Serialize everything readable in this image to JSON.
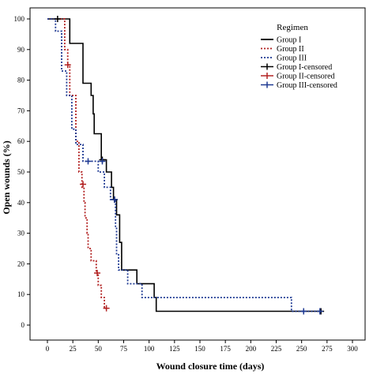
{
  "chart_data": {
    "type": "line",
    "title": "",
    "xlabel": "Wound closure time (days)",
    "ylabel": "Open wounds (%)",
    "xlim": [
      0,
      300
    ],
    "ylim": [
      0,
      100
    ],
    "x_ticks": [
      "0",
      "25",
      "50",
      "75",
      "100",
      "125",
      "150",
      "175",
      "200",
      "225",
      "250",
      "275",
      "300"
    ],
    "y_ticks": [
      "0",
      "10",
      "20",
      "30",
      "40",
      "50",
      "60",
      "70",
      "80",
      "90",
      "100"
    ],
    "grid": false,
    "legend_title": "Regimen",
    "legend_position": "top-right",
    "legend_labels": [
      "Group I",
      "Group II",
      "Group III",
      "Group I-censored",
      "Group II-censored",
      "Group III-censored"
    ],
    "series": [
      {
        "name": "Group I",
        "color": "#000000",
        "style": "solid",
        "steps": [
          [
            0,
            100
          ],
          [
            22,
            100
          ],
          [
            22,
            92
          ],
          [
            35,
            92
          ],
          [
            35,
            79
          ],
          [
            43,
            79
          ],
          [
            43,
            75
          ],
          [
            45,
            75
          ],
          [
            45,
            69
          ],
          [
            46,
            69
          ],
          [
            46,
            62.5
          ],
          [
            53,
            62.5
          ],
          [
            53,
            54
          ],
          [
            58,
            54
          ],
          [
            58,
            50
          ],
          [
            63,
            50
          ],
          [
            63,
            45
          ],
          [
            65,
            45
          ],
          [
            65,
            41
          ],
          [
            68,
            41
          ],
          [
            68,
            36
          ],
          [
            71,
            36
          ],
          [
            71,
            27
          ],
          [
            73,
            27
          ],
          [
            73,
            18
          ],
          [
            88,
            18
          ],
          [
            88,
            13.5
          ],
          [
            105,
            13.5
          ],
          [
            105,
            9
          ],
          [
            107,
            9
          ],
          [
            107,
            4.5
          ],
          [
            269,
            4.5
          ]
        ],
        "censored": [
          [
            10,
            100
          ],
          [
            54,
            54
          ],
          [
            66,
            41
          ],
          [
            269,
            4.5
          ]
        ]
      },
      {
        "name": "Group II",
        "color": "#b22222",
        "style": "dotted",
        "steps": [
          [
            0,
            100
          ],
          [
            17,
            100
          ],
          [
            17,
            90
          ],
          [
            20,
            90
          ],
          [
            20,
            85
          ],
          [
            22,
            85
          ],
          [
            22,
            75
          ],
          [
            28,
            75
          ],
          [
            28,
            60
          ],
          [
            31,
            60
          ],
          [
            31,
            50
          ],
          [
            34,
            50
          ],
          [
            34,
            45
          ],
          [
            36,
            45
          ],
          [
            36,
            40
          ],
          [
            37,
            40
          ],
          [
            37,
            35
          ],
          [
            39,
            35
          ],
          [
            39,
            30
          ],
          [
            40,
            30
          ],
          [
            40,
            25
          ],
          [
            43,
            25
          ],
          [
            43,
            21
          ],
          [
            48,
            21
          ],
          [
            48,
            17
          ],
          [
            50,
            17
          ],
          [
            50,
            13
          ],
          [
            53,
            13
          ],
          [
            53,
            9
          ],
          [
            56,
            9
          ],
          [
            56,
            5.5
          ],
          [
            58,
            5.5
          ]
        ],
        "censored": [
          [
            20,
            85
          ],
          [
            35,
            46
          ],
          [
            49,
            17
          ],
          [
            58,
            5.5
          ]
        ]
      },
      {
        "name": "Group III",
        "color": "#1f3a93",
        "style": "dotted",
        "steps": [
          [
            0,
            100
          ],
          [
            8,
            100
          ],
          [
            8,
            96
          ],
          [
            14,
            96
          ],
          [
            14,
            83
          ],
          [
            19,
            83
          ],
          [
            19,
            75
          ],
          [
            24,
            75
          ],
          [
            24,
            64
          ],
          [
            28,
            64
          ],
          [
            28,
            59
          ],
          [
            35,
            59
          ],
          [
            35,
            53.5
          ],
          [
            50,
            53.5
          ],
          [
            50,
            50
          ],
          [
            56,
            50
          ],
          [
            56,
            45
          ],
          [
            62,
            45
          ],
          [
            62,
            41
          ],
          [
            67,
            41
          ],
          [
            67,
            32
          ],
          [
            68,
            32
          ],
          [
            68,
            23
          ],
          [
            70,
            23
          ],
          [
            70,
            18
          ],
          [
            79,
            18
          ],
          [
            79,
            13.5
          ],
          [
            93,
            13.5
          ],
          [
            93,
            9
          ],
          [
            240,
            9
          ],
          [
            240,
            4.5
          ],
          [
            270,
            4.5
          ]
        ],
        "censored": [
          [
            40,
            53.5
          ],
          [
            54,
            53.5
          ],
          [
            66,
            41
          ],
          [
            252,
            4.5
          ],
          [
            268,
            4.5
          ]
        ]
      }
    ]
  }
}
